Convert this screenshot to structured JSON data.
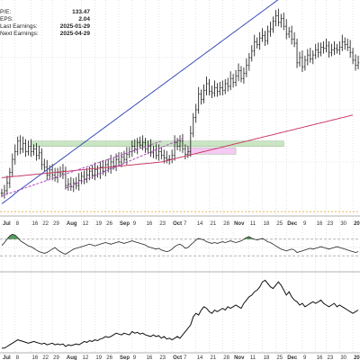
{
  "stats": [
    {
      "label": "P/E:",
      "value": "133.47"
    },
    {
      "label": "EPS:",
      "value": "2.04"
    },
    {
      "label": "Last Earnings:",
      "value": "2025-01-29"
    },
    {
      "label": "Next Earnings:",
      "value": "2025-04-29"
    }
  ],
  "chart_data": {
    "type": "line",
    "x_unit": "trading days since start of view (date axis)",
    "x_range": [
      0,
      134
    ],
    "panels": [
      {
        "name": "price",
        "type": "ohlc",
        "y_range": [
          0,
          100
        ],
        "closes": [
          16,
          18,
          24,
          32,
          42,
          48,
          56,
          50,
          54,
          48,
          52,
          48,
          50,
          45,
          47,
          38,
          36,
          30,
          34,
          30,
          28,
          32,
          31,
          33,
          22,
          23,
          21,
          24,
          22,
          26,
          29,
          27,
          30,
          33,
          30,
          34,
          31,
          36,
          33,
          38,
          35,
          40,
          37,
          42,
          40,
          44,
          42,
          46,
          48,
          52,
          50,
          55,
          53,
          55,
          50,
          52,
          47,
          49,
          45,
          48,
          45,
          43,
          42,
          42,
          45,
          55,
          52,
          56,
          50,
          46,
          48,
          62,
          74,
          80,
          92,
          88,
          95,
          100,
          94,
          93,
          97,
          94,
          97,
          95,
          100,
          98,
          104,
          101,
          106,
          110,
          104,
          108,
          114,
          120,
          125,
          132,
          130,
          135,
          137,
          133,
          140,
          142,
          148,
          152,
          147,
          150,
          144,
          138,
          140,
          134,
          131,
          116,
          120,
          113,
          118,
          122,
          119,
          122,
          126,
          124,
          128,
          127,
          129,
          124,
          126,
          127,
          126,
          128,
          132,
          130,
          128,
          124,
          118,
          114,
          116
        ],
        "ma_short": [
          8,
          9.5,
          11,
          12.5,
          14,
          16,
          17.5,
          19,
          20.5,
          22,
          23.5,
          25,
          26.5,
          28,
          29.5,
          31,
          32.5,
          34,
          35.5,
          37,
          38.5,
          40,
          41.5,
          43,
          44.5,
          46,
          47.5,
          49,
          50.5,
          52,
          53.5,
          55,
          56.5,
          58,
          59.5,
          61,
          62.5,
          64,
          65.5,
          67,
          68.5,
          70,
          71.5,
          73,
          74.5,
          76,
          77.5,
          79,
          80.5,
          82,
          83.5,
          85,
          86.5,
          88,
          89.5,
          91,
          92.5,
          94,
          95.5,
          97,
          98.5,
          100,
          101.5,
          103,
          104.5,
          106,
          107.5,
          109,
          110.5,
          112,
          113.5,
          115,
          116.5,
          118,
          119.5,
          121,
          122.5,
          124,
          125.5,
          127,
          128.5,
          130,
          131.5,
          133,
          134.5,
          136,
          137.5,
          139,
          140.5,
          142,
          143.5,
          145,
          146.5,
          148,
          149.5,
          151,
          152.5,
          154,
          155.5,
          157,
          158.5,
          160,
          161.5,
          163,
          164.5,
          166,
          167.5,
          169,
          170.5,
          172,
          173.5,
          175,
          176.5,
          178,
          179.5,
          181,
          182.5,
          184,
          185.5,
          187,
          188.5,
          190,
          191.5,
          193,
          194.5,
          196,
          197.5,
          199,
          200.5,
          202,
          203.5,
          205,
          206.5,
          208
        ],
        "ma_long": [
          28,
          28.2,
          28.4,
          28.6,
          28.8,
          29,
          29.2,
          29.4,
          29.6,
          29.8,
          30,
          30.2,
          30.4,
          30.6,
          30.8,
          31,
          31.2,
          31.4,
          31.6,
          31.8,
          32,
          32.2,
          32.4,
          32.6,
          32.8,
          33,
          33.2,
          33.4,
          33.6,
          33.8,
          34,
          34.2,
          34.4,
          34.6,
          34.8,
          35,
          35.2,
          35.4,
          35.6,
          35.8,
          36,
          36.2,
          36.4,
          36.6,
          36.8,
          37,
          37.2,
          37.4,
          37.6,
          37.8,
          38,
          38.2,
          38.4,
          38.6,
          38.8,
          39,
          39.2,
          39.4,
          39.6,
          39.8,
          40,
          40.5,
          41,
          41.5,
          42,
          42.5,
          43,
          43.5,
          44,
          44.5,
          45,
          45.5,
          46,
          46.5,
          47,
          47.5,
          48,
          48.5,
          49,
          49.5,
          50,
          50.5,
          51,
          51.5,
          52,
          52.5,
          53,
          53.5,
          54,
          54.5,
          55,
          55.5,
          56,
          56.5,
          57,
          57.5,
          58,
          58.5,
          59,
          59.5,
          60,
          60.5,
          61,
          61.5,
          62,
          62.5,
          63,
          63.5,
          64,
          64.5,
          65,
          65.5,
          66,
          66.5,
          67,
          67.5,
          68,
          68.5,
          69,
          69.5,
          70,
          70.5,
          71,
          71.5,
          72,
          72.5,
          73,
          73.5,
          74,
          74.5,
          75,
          75.5,
          76
        ]
      },
      {
        "name": "oscillator",
        "type": "line",
        "y_range": [
          0,
          100
        ],
        "reference_levels": [
          70,
          50,
          30
        ],
        "values": [
          55,
          62,
          70,
          78,
          82,
          80,
          74,
          66,
          62,
          58,
          54,
          52,
          48,
          44,
          40,
          38,
          36,
          38,
          42,
          46,
          50,
          44,
          40,
          36,
          34,
          38,
          42,
          46,
          48,
          50,
          52,
          54,
          56,
          58,
          56,
          54,
          56,
          58,
          60,
          62,
          60,
          58,
          60,
          62,
          64,
          62,
          60,
          62,
          64,
          66,
          64,
          62,
          60,
          58,
          56,
          52,
          50,
          48,
          46,
          48,
          44,
          42,
          40,
          42,
          46,
          52,
          56,
          58,
          54,
          48,
          50,
          56,
          62,
          68,
          72,
          70,
          68,
          64,
          62,
          60,
          62,
          60,
          62,
          64,
          62,
          64,
          66,
          64,
          62,
          64,
          66,
          70,
          74,
          76,
          72,
          70,
          68,
          70,
          72,
          68,
          64,
          62,
          58,
          54,
          50,
          46,
          44,
          42,
          44,
          46,
          44,
          38,
          40,
          42,
          44,
          46,
          48,
          46,
          48,
          50,
          52,
          50,
          48,
          46,
          48,
          50,
          52,
          50,
          48,
          46,
          44,
          42,
          40,
          38,
          40
        ]
      },
      {
        "name": "volume-indicator",
        "type": "line",
        "y_range": [
          0,
          100
        ],
        "values": [
          10,
          10,
          12,
          14,
          16,
          18,
          20,
          19,
          18,
          17,
          16,
          17,
          18,
          17,
          16,
          15,
          16,
          14,
          15,
          16,
          14,
          15,
          14,
          15,
          12,
          14,
          13,
          14,
          15,
          14,
          16,
          18,
          17,
          19,
          18,
          20,
          19,
          21,
          22,
          24,
          23,
          24,
          26,
          28,
          27,
          26,
          28,
          27,
          26,
          30,
          28,
          29,
          27,
          28,
          26,
          25,
          24,
          26,
          24,
          25,
          22,
          24,
          21,
          22,
          20,
          22,
          24,
          22,
          26,
          30,
          34,
          38,
          48,
          52,
          50,
          56,
          60,
          58,
          54,
          52,
          56,
          54,
          56,
          58,
          56,
          60,
          58,
          60,
          62,
          60,
          58,
          64,
          68,
          72,
          74,
          78,
          80,
          84,
          90,
          92,
          88,
          84,
          82,
          86,
          90,
          86,
          80,
          74,
          78,
          72,
          68,
          66,
          62,
          64,
          60,
          62,
          64,
          66,
          64,
          66,
          68,
          64,
          62,
          60,
          62,
          64,
          60,
          62,
          60,
          58,
          56,
          54,
          52,
          54,
          56
        ]
      }
    ],
    "x_tick_labels": [
      {
        "label": "Jul",
        "x": 0,
        "bold": true
      },
      {
        "label": "8",
        "x": 5
      },
      {
        "label": "16",
        "x": 11
      },
      {
        "label": "22",
        "x": 15
      },
      {
        "label": "29",
        "x": 19
      },
      {
        "label": "Aug",
        "x": 24,
        "bold": true
      },
      {
        "label": "12",
        "x": 30
      },
      {
        "label": "19",
        "x": 35
      },
      {
        "label": "26",
        "x": 39
      },
      {
        "label": "Sep",
        "x": 44,
        "bold": true
      },
      {
        "label": "9",
        "x": 49
      },
      {
        "label": "16",
        "x": 54
      },
      {
        "label": "23",
        "x": 59
      },
      {
        "label": "Oct",
        "x": 64,
        "bold": true
      },
      {
        "label": "7",
        "x": 68
      },
      {
        "label": "14",
        "x": 73
      },
      {
        "label": "21",
        "x": 78
      },
      {
        "label": "28",
        "x": 83
      },
      {
        "label": "Nov",
        "x": 87,
        "bold": true
      },
      {
        "label": "11",
        "x": 93
      },
      {
        "label": "18",
        "x": 98
      },
      {
        "label": "25",
        "x": 103
      },
      {
        "label": "Dec",
        "x": 107,
        "bold": true
      },
      {
        "label": "9",
        "x": 113
      },
      {
        "label": "16",
        "x": 118
      },
      {
        "label": "23",
        "x": 122
      },
      {
        "label": "30",
        "x": 127
      },
      {
        "label": "20",
        "x": 132,
        "bold": true
      }
    ],
    "annotations": [
      {
        "type": "resistance-zone",
        "x_range": [
          11,
          106
        ],
        "y_range": [
          52,
          56
        ],
        "color": "#b7dcb0"
      },
      {
        "type": "highlight-zone",
        "x_range": [
          70,
          88
        ],
        "y_range": [
          46,
          51
        ],
        "color": "#f2b8ef"
      },
      {
        "type": "trend-channel",
        "color": "#b04fc0",
        "points": [
          [
            0,
            14
          ],
          [
            60,
            56
          ]
        ]
      },
      {
        "type": "trend-channel",
        "color": "#b04fc0",
        "points": [
          [
            24,
            20
          ],
          [
            68,
            58
          ]
        ]
      }
    ],
    "colors": {
      "bars": "#111111",
      "ma_short": "#3b4db8",
      "ma_long": "#c73a64",
      "oscillator": "#222222",
      "oscillator_fill": "#3b8a45",
      "volume": "#111111",
      "grid": "#c9c9c9"
    },
    "grid": true
  }
}
